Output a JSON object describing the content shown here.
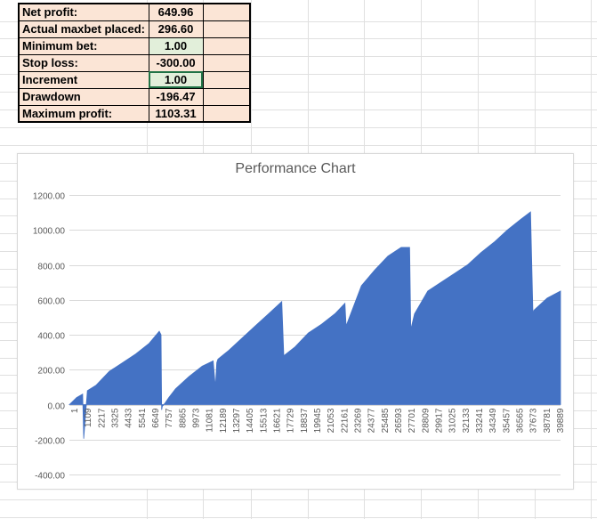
{
  "stats": [
    {
      "label": "Net profit:",
      "value": "649.96",
      "style": "peach"
    },
    {
      "label": "Actual maxbet placed:",
      "value": "296.60",
      "style": "peach"
    },
    {
      "label": "Minimum bet:",
      "value": "1.00",
      "style": "green"
    },
    {
      "label": "Stop loss:",
      "value": "-300.00",
      "style": "peach"
    },
    {
      "label": "Increment",
      "value": "1.00",
      "style": "green",
      "selected": true
    },
    {
      "label": "Drawdown",
      "value": "-196.47",
      "style": "peach"
    },
    {
      "label": "Maximum profit:",
      "value": "1103.31",
      "style": "peach"
    }
  ],
  "colors": {
    "series": "#4472c4",
    "peach": "#fbe5d6",
    "green": "#e2efda",
    "selection": "#217346",
    "gridline": "#d9d9d9"
  },
  "chart_data": {
    "type": "area",
    "title": "Performance Chart",
    "xlabel": "",
    "ylabel": "",
    "ylim": [
      -400,
      1200
    ],
    "yticks": [
      "1200.00",
      "1000.00",
      "800.00",
      "600.00",
      "400.00",
      "200.00",
      "0.00",
      "-200.00",
      "-400.00"
    ],
    "x_tick_labels": [
      "1",
      "1109",
      "2217",
      "3325",
      "4433",
      "5541",
      "6649",
      "7757",
      "8865",
      "9973",
      "11081",
      "12189",
      "13297",
      "14405",
      "15513",
      "16621",
      "17729",
      "18837",
      "19945",
      "21053",
      "22161",
      "23269",
      "24377",
      "25485",
      "26593",
      "27701",
      "28809",
      "29917",
      "31025",
      "32133",
      "33241",
      "34349",
      "35457",
      "36565",
      "37673",
      "38781",
      "39889"
    ],
    "grid": true,
    "legend": "none",
    "series": [
      {
        "x": [
          1,
          600,
          1109,
          1200,
          1500,
          2217,
          3325,
          4433,
          5541,
          6649,
          7500,
          7650,
          7700,
          7757,
          8000,
          8300,
          8865,
          9973,
          11081,
          12000,
          12189,
          12300,
          12400,
          13297,
          14405,
          15513,
          16621,
          17729,
          17900,
          18837,
          19945,
          21053,
          22161,
          23000,
          23100,
          24377,
          25485,
          26593,
          27701,
          28400,
          28500,
          28809,
          29917,
          31025,
          32133,
          33241,
          34349,
          35457,
          36565,
          37673,
          38500,
          38700,
          38781,
          39889,
          41000
        ],
        "values": [
          0,
          40,
          60,
          -195,
          80,
          110,
          190,
          240,
          290,
          350,
          420,
          400,
          -30,
          -10,
          10,
          40,
          90,
          160,
          220,
          250,
          100,
          240,
          260,
          310,
          380,
          450,
          520,
          590,
          280,
          330,
          410,
          460,
          520,
          580,
          450,
          680,
          770,
          850,
          900,
          900,
          430,
          520,
          650,
          700,
          750,
          800,
          870,
          930,
          1000,
          1060,
          1103,
          520,
          540,
          610,
          650
        ]
      }
    ]
  }
}
